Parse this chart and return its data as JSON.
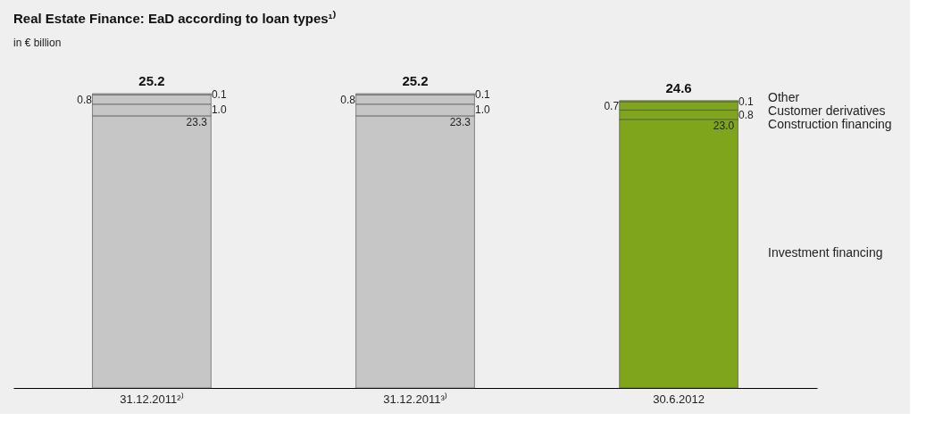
{
  "chart_data": {
    "type": "bar",
    "stacked": true,
    "title": "Real Estate Finance: EaD according to loan types¹⁾",
    "subtitle": "in € billion",
    "categories": [
      "31.12.2011²⁾",
      "31.12.2011³⁾",
      "30.6.2012"
    ],
    "series": [
      {
        "name": "Investment financing",
        "colors": [
          "#c6c6c6",
          "#c6c6c6",
          "#7ea51c"
        ],
        "values": [
          23.3,
          23.3,
          23.0
        ],
        "value_labels": [
          "23.3",
          "23.3",
          "23.0"
        ]
      },
      {
        "name": "Construction financing",
        "colors": [
          "#c6c6c6",
          "#c6c6c6",
          "#7ea51c"
        ],
        "values": [
          1.0,
          1.0,
          0.8
        ],
        "value_labels": [
          "1.0",
          "1.0",
          "0.8"
        ]
      },
      {
        "name": "Customer derivatives",
        "colors": [
          "#c6c6c6",
          "#c6c6c6",
          "#7ea51c"
        ],
        "values": [
          0.8,
          0.8,
          0.7
        ],
        "value_labels": [
          "0.8",
          "0.8",
          "0.7"
        ]
      },
      {
        "name": "Other",
        "colors": [
          "#c6c6c6",
          "#c6c6c6",
          "#7ea51c"
        ],
        "values": [
          0.1,
          0.1,
          0.1
        ],
        "value_labels": [
          "0.1",
          "0.1",
          "0.1"
        ]
      }
    ],
    "totals": [
      "25.2",
      "25.2",
      "24.6"
    ],
    "data_labels": true,
    "legend": false
  }
}
